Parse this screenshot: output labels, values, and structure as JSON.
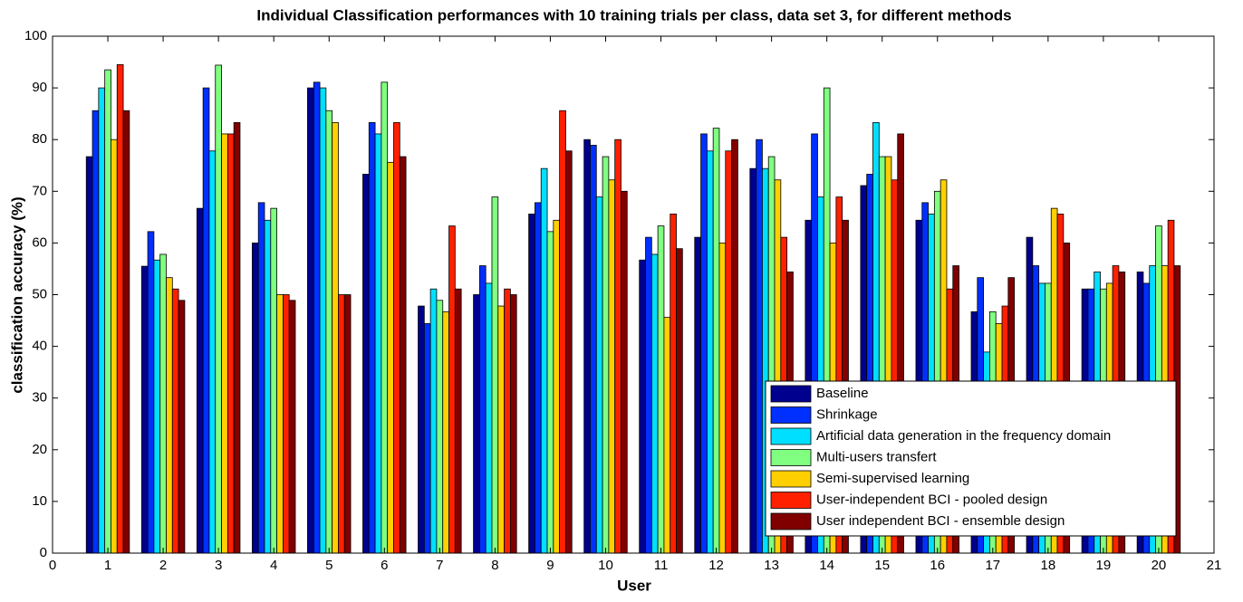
{
  "chart_data": {
    "type": "bar",
    "title": "Individual Classification performances with 10 training trials per class, data set 3, for different methods",
    "x_label": "User",
    "y_label": "classification accuracy (%)",
    "x": [
      1,
      2,
      3,
      4,
      5,
      6,
      7,
      8,
      9,
      10,
      11,
      12,
      13,
      14,
      15,
      16,
      17,
      18,
      19,
      20
    ],
    "xlim": [
      0,
      21
    ],
    "xticks": [
      0,
      1,
      2,
      3,
      4,
      5,
      6,
      7,
      8,
      9,
      10,
      11,
      12,
      13,
      14,
      15,
      16,
      17,
      18,
      19,
      20,
      21
    ],
    "ylim": [
      0,
      100
    ],
    "yticks": [
      0,
      10,
      20,
      30,
      40,
      50,
      60,
      70,
      80,
      90,
      100
    ],
    "grid": false,
    "legend": "lower right",
    "series": [
      {
        "name": "Baseline",
        "color": "#00008f",
        "values": [
          76.7,
          55.5,
          66.7,
          60,
          90,
          73.3,
          47.8,
          50,
          65.6,
          80,
          56.7,
          61.1,
          74.4,
          64.4,
          71.1,
          64.4,
          46.7,
          61.1,
          51.1,
          54.4
        ]
      },
      {
        "name": "Shrinkage",
        "color": "#0030ff",
        "values": [
          85.6,
          62.2,
          90,
          67.8,
          91.1,
          83.3,
          44.4,
          55.6,
          67.8,
          78.9,
          61.1,
          81.1,
          80,
          81.1,
          73.3,
          67.8,
          53.3,
          55.6,
          51.1,
          52.2
        ]
      },
      {
        "name": "Artificial data generation in the frequency domain",
        "color": "#00dfff",
        "values": [
          90,
          56.7,
          77.8,
          64.4,
          90,
          81.1,
          51.1,
          52.2,
          74.4,
          68.9,
          57.8,
          77.8,
          74.4,
          68.9,
          83.3,
          65.6,
          38.9,
          52.2,
          54.4,
          55.6
        ]
      },
      {
        "name": "Multi-users transfert",
        "color": "#80ff80",
        "values": [
          93.5,
          57.8,
          94.4,
          66.7,
          85.6,
          91.1,
          48.9,
          68.9,
          62.2,
          76.7,
          63.3,
          82.2,
          76.7,
          90,
          76.7,
          70,
          46.7,
          52.2,
          51.1,
          63.3
        ]
      },
      {
        "name": "Semi-supervised learning",
        "color": "#ffcf00",
        "values": [
          80,
          53.3,
          81.1,
          50,
          83.3,
          75.6,
          46.7,
          47.8,
          64.4,
          72.2,
          45.6,
          60,
          72.2,
          60,
          76.7,
          72.2,
          44.4,
          66.7,
          52.2,
          55.6
        ]
      },
      {
        "name": "User-independent BCI - pooled design",
        "color": "#ff2000",
        "values": [
          94.5,
          51.1,
          81.1,
          50,
          50,
          83.3,
          63.3,
          51.1,
          85.6,
          80,
          65.6,
          77.8,
          61.1,
          68.9,
          72.2,
          51.1,
          47.8,
          65.6,
          55.6,
          64.4
        ]
      },
      {
        "name": "User independent BCI - ensemble design",
        "color": "#800000",
        "values": [
          85.6,
          48.9,
          83.3,
          48.9,
          50,
          76.7,
          51.1,
          50,
          77.8,
          70,
          58.9,
          80,
          54.4,
          64.4,
          81.1,
          55.6,
          53.3,
          60,
          54.4,
          55.6
        ]
      }
    ]
  }
}
